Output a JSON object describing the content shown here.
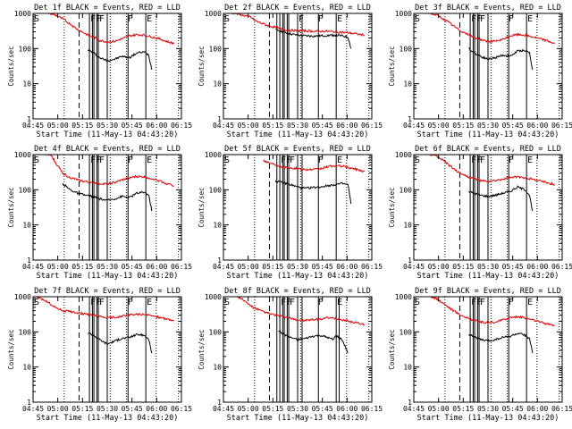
{
  "figure": {
    "background": "#ffffff",
    "axis_color": "#000000"
  },
  "common": {
    "xlabel": "Start Time (11-May-13 04:43:20)",
    "ylabel": "Counts/sec",
    "xtick_labels": [
      "04:45",
      "05:00",
      "05:15",
      "05:30",
      "05:45",
      "06:00",
      "06:15"
    ],
    "ytick_labels": [
      "1",
      "10",
      "100",
      "1000"
    ],
    "colors": {
      "events": "#000000",
      "lld": "#dd0000"
    }
  },
  "chart_data": [
    {
      "type": "line",
      "title": "Det 1f BLACK = Events, RED = LLD",
      "x_units": "minutes after 04:43:20",
      "xlim": [
        0,
        100
      ],
      "ylim": [
        1,
        1000
      ],
      "yscale": "log",
      "dotted_lines": [
        21,
        52,
        63,
        83,
        98
      ],
      "dashed_lines": [
        31
      ],
      "solid_lines": [
        38,
        40,
        41,
        43,
        44,
        50,
        64,
        76
      ],
      "markers": [
        {
          "label": "S",
          "x": 0
        },
        {
          "label": "FF",
          "x": 38
        },
        {
          "label": "F",
          "x": 44
        },
        {
          "label": "F",
          "x": 63
        },
        {
          "label": "E",
          "x": 76
        }
      ],
      "series": [
        {
          "role": "events",
          "x": [
            37,
            40,
            45,
            50,
            55,
            60,
            65,
            70,
            75,
            78,
            80
          ],
          "y": [
            90,
            80,
            55,
            45,
            50,
            60,
            55,
            75,
            80,
            65,
            25
          ]
        },
        {
          "role": "lld",
          "x": [
            0,
            10,
            15,
            20,
            25,
            30,
            35,
            38,
            42,
            45,
            50,
            55,
            60,
            65,
            70,
            75,
            80,
            85,
            90,
            95
          ],
          "y": [
            1100,
            1050,
            900,
            700,
            500,
            350,
            270,
            230,
            200,
            170,
            155,
            160,
            190,
            230,
            250,
            240,
            215,
            190,
            160,
            140
          ]
        }
      ]
    },
    {
      "type": "line",
      "title": "Det 2f BLACK = Events, RED = LLD",
      "x_units": "minutes after 04:43:20",
      "xlim": [
        0,
        100
      ],
      "ylim": [
        1,
        1000
      ],
      "yscale": "log",
      "dotted_lines": [
        21,
        52,
        83,
        98
      ],
      "dashed_lines": [
        31
      ],
      "solid_lines": [
        36,
        38,
        40,
        41,
        43,
        44,
        50,
        53,
        64,
        76
      ],
      "markers": [
        {
          "label": "S",
          "x": 0
        },
        {
          "label": "F",
          "x": 50
        },
        {
          "label": "F",
          "x": 63
        },
        {
          "label": "E",
          "x": 76
        }
      ],
      "series": [
        {
          "role": "events",
          "x": [
            35,
            40,
            45,
            50,
            55,
            60,
            65,
            70,
            75,
            80,
            84,
            86
          ],
          "y": [
            350,
            300,
            260,
            240,
            230,
            225,
            230,
            235,
            240,
            230,
            210,
            100
          ]
        },
        {
          "role": "lld",
          "x": [
            0,
            8,
            12,
            18,
            22,
            30,
            35,
            40,
            45,
            50,
            55,
            60,
            65,
            70,
            75,
            80,
            85,
            90,
            95
          ],
          "y": [
            1100,
            1000,
            900,
            800,
            600,
            450,
            400,
            350,
            330,
            320,
            320,
            310,
            310,
            310,
            300,
            290,
            280,
            260,
            240
          ]
        }
      ]
    },
    {
      "type": "line",
      "title": "Det 3f BLACK = Events, RED = LLD",
      "x_units": "minutes after 04:43:20",
      "xlim": [
        0,
        100
      ],
      "ylim": [
        1,
        1000
      ],
      "yscale": "log",
      "dotted_lines": [
        21,
        52,
        63,
        83,
        98
      ],
      "dashed_lines": [
        31
      ],
      "solid_lines": [
        38,
        40,
        41,
        43,
        44,
        50,
        64,
        76
      ],
      "markers": [
        {
          "label": "S",
          "x": 0
        },
        {
          "label": "FF",
          "x": 38
        },
        {
          "label": "F",
          "x": 44
        },
        {
          "label": "F",
          "x": 63
        },
        {
          "label": "E",
          "x": 76
        }
      ],
      "series": [
        {
          "role": "events",
          "x": [
            37,
            40,
            45,
            50,
            55,
            60,
            65,
            70,
            75,
            78,
            80
          ],
          "y": [
            100,
            80,
            60,
            50,
            55,
            65,
            60,
            85,
            90,
            75,
            25
          ]
        },
        {
          "role": "lld",
          "x": [
            0,
            10,
            15,
            20,
            25,
            30,
            35,
            38,
            42,
            45,
            50,
            55,
            60,
            65,
            70,
            75,
            80,
            85,
            90,
            95
          ],
          "y": [
            1100,
            1050,
            900,
            700,
            500,
            350,
            270,
            230,
            200,
            180,
            160,
            160,
            180,
            230,
            250,
            240,
            215,
            190,
            165,
            140
          ]
        }
      ]
    },
    {
      "type": "line",
      "title": "Det 4f BLACK = Events, RED = LLD",
      "x_units": "minutes after 04:43:20",
      "xlim": [
        0,
        100
      ],
      "ylim": [
        1,
        1000
      ],
      "yscale": "log",
      "dotted_lines": [
        21,
        52,
        63,
        83,
        98
      ],
      "dashed_lines": [
        31
      ],
      "solid_lines": [
        38,
        40,
        41,
        43,
        44,
        50,
        64,
        76
      ],
      "markers": [
        {
          "label": "S",
          "x": 0
        },
        {
          "label": "FF",
          "x": 38
        },
        {
          "label": "F",
          "x": 44
        },
        {
          "label": "F",
          "x": 63
        },
        {
          "label": "E",
          "x": 76
        }
      ],
      "series": [
        {
          "role": "events",
          "x": [
            20,
            25,
            30,
            35,
            40,
            45,
            50,
            55,
            60,
            65,
            70,
            75,
            78,
            80
          ],
          "y": [
            150,
            100,
            80,
            70,
            65,
            55,
            50,
            55,
            65,
            60,
            80,
            85,
            70,
            25
          ]
        },
        {
          "role": "lld",
          "x": [
            0,
            8,
            12,
            15,
            20,
            25,
            30,
            35,
            40,
            45,
            50,
            55,
            60,
            65,
            70,
            75,
            80,
            85,
            90,
            95
          ],
          "y": [
            1100,
            1050,
            1000,
            600,
            300,
            220,
            190,
            170,
            160,
            150,
            145,
            160,
            190,
            220,
            240,
            230,
            210,
            180,
            150,
            130
          ]
        }
      ]
    },
    {
      "type": "line",
      "title": "Det 5f BLACK = Events, RED = LLD",
      "x_units": "minutes after 04:43:20",
      "xlim": [
        0,
        100
      ],
      "ylim": [
        1,
        1000
      ],
      "yscale": "log",
      "dotted_lines": [
        21,
        52,
        83,
        98
      ],
      "dashed_lines": [
        31
      ],
      "solid_lines": [
        36,
        38,
        40,
        41,
        43,
        44,
        50,
        53,
        64,
        76
      ],
      "markers": [
        {
          "label": "S",
          "x": 0
        },
        {
          "label": "FF",
          "x": 38
        },
        {
          "label": "F",
          "x": 44
        },
        {
          "label": "F",
          "x": 63
        },
        {
          "label": "E",
          "x": 76
        }
      ],
      "series": [
        {
          "role": "events",
          "x": [
            35,
            40,
            45,
            50,
            55,
            60,
            65,
            70,
            75,
            80,
            84,
            86
          ],
          "y": [
            180,
            160,
            140,
            120,
            110,
            115,
            120,
            130,
            140,
            150,
            140,
            40
          ]
        },
        {
          "role": "lld",
          "x": [
            27,
            30,
            35,
            40,
            45,
            50,
            55,
            60,
            65,
            70,
            75,
            80,
            85,
            90,
            95
          ],
          "y": [
            700,
            600,
            520,
            450,
            420,
            400,
            380,
            370,
            390,
            450,
            480,
            470,
            420,
            380,
            330
          ]
        }
      ]
    },
    {
      "type": "line",
      "title": "Det 6f BLACK = Events, RED = LLD",
      "x_units": "minutes after 04:43:20",
      "xlim": [
        0,
        100
      ],
      "ylim": [
        1,
        1000
      ],
      "yscale": "log",
      "dotted_lines": [
        21,
        52,
        63,
        83,
        98
      ],
      "dashed_lines": [
        31
      ],
      "solid_lines": [
        38,
        40,
        41,
        43,
        44,
        50,
        64,
        76
      ],
      "markers": [
        {
          "label": "S",
          "x": 0
        },
        {
          "label": "FF",
          "x": 38
        },
        {
          "label": "F",
          "x": 44
        },
        {
          "label": "F",
          "x": 63
        },
        {
          "label": "E",
          "x": 76
        }
      ],
      "series": [
        {
          "role": "events",
          "x": [
            37,
            40,
            45,
            50,
            55,
            60,
            65,
            70,
            75,
            78,
            80
          ],
          "y": [
            90,
            80,
            70,
            65,
            70,
            80,
            90,
            120,
            100,
            70,
            25
          ]
        },
        {
          "role": "lld",
          "x": [
            0,
            10,
            15,
            20,
            25,
            30,
            35,
            38,
            42,
            45,
            50,
            55,
            60,
            65,
            70,
            75,
            80,
            85,
            90,
            95
          ],
          "y": [
            1100,
            1050,
            900,
            700,
            450,
            320,
            250,
            220,
            200,
            180,
            170,
            180,
            200,
            220,
            230,
            220,
            200,
            180,
            160,
            140
          ]
        }
      ]
    },
    {
      "type": "line",
      "title": "Det 7f BLACK = Events, RED = LLD",
      "x_units": "minutes after 04:43:20",
      "xlim": [
        0,
        100
      ],
      "ylim": [
        1,
        1000
      ],
      "yscale": "log",
      "dotted_lines": [
        21,
        52,
        63,
        83,
        98
      ],
      "dashed_lines": [
        31
      ],
      "solid_lines": [
        38,
        40,
        41,
        43,
        44,
        50,
        64,
        76
      ],
      "markers": [
        {
          "label": "S",
          "x": 0
        },
        {
          "label": "FF",
          "x": 38
        },
        {
          "label": "F",
          "x": 44
        },
        {
          "label": "F",
          "x": 63
        },
        {
          "label": "E",
          "x": 76
        }
      ],
      "series": [
        {
          "role": "events",
          "x": [
            37,
            40,
            45,
            50,
            55,
            60,
            65,
            70,
            75,
            78,
            80
          ],
          "y": [
            95,
            85,
            60,
            45,
            55,
            65,
            70,
            85,
            80,
            60,
            25
          ]
        },
        {
          "role": "lld",
          "x": [
            0,
            5,
            10,
            15,
            20,
            25,
            30,
            35,
            40,
            45,
            50,
            55,
            60,
            65,
            70,
            75,
            80,
            85,
            90,
            95
          ],
          "y": [
            1100,
            900,
            700,
            500,
            400,
            380,
            350,
            320,
            300,
            270,
            250,
            260,
            280,
            300,
            320,
            310,
            290,
            260,
            230,
            210
          ]
        }
      ]
    },
    {
      "type": "line",
      "title": "Det 8f BLACK = Events, RED = LLD",
      "x_units": "minutes after 04:43:20",
      "xlim": [
        0,
        100
      ],
      "ylim": [
        1,
        1000
      ],
      "yscale": "log",
      "dotted_lines": [
        21,
        52,
        83,
        98
      ],
      "dashed_lines": [
        31
      ],
      "solid_lines": [
        36,
        38,
        40,
        41,
        43,
        44,
        50,
        53,
        64,
        76,
        78
      ],
      "markers": [
        {
          "label": "S",
          "x": 0
        },
        {
          "label": "FF",
          "x": 38
        },
        {
          "label": "F",
          "x": 44
        },
        {
          "label": "F",
          "x": 63
        },
        {
          "label": "E",
          "x": 76
        }
      ],
      "series": [
        {
          "role": "events",
          "x": [
            37,
            40,
            45,
            50,
            55,
            60,
            65,
            70,
            74,
            76,
            80,
            84
          ],
          "y": [
            110,
            90,
            70,
            60,
            65,
            75,
            80,
            70,
            60,
            80,
            60,
            25
          ]
        },
        {
          "role": "lld",
          "x": [
            0,
            8,
            12,
            15,
            20,
            25,
            30,
            35,
            40,
            45,
            50,
            55,
            60,
            65,
            70,
            75,
            80,
            85,
            90,
            95
          ],
          "y": [
            1100,
            1050,
            900,
            700,
            500,
            400,
            340,
            300,
            270,
            240,
            220,
            210,
            220,
            230,
            250,
            240,
            220,
            200,
            180,
            160
          ]
        }
      ]
    },
    {
      "type": "line",
      "title": "Det 9f BLACK = Events, RED = LLD",
      "x_units": "minutes after 04:43:20",
      "xlim": [
        0,
        100
      ],
      "ylim": [
        1,
        1000
      ],
      "yscale": "log",
      "dotted_lines": [
        21,
        52,
        63,
        83,
        98
      ],
      "dashed_lines": [
        31
      ],
      "solid_lines": [
        38,
        40,
        41,
        43,
        44,
        50,
        64,
        76
      ],
      "markers": [
        {
          "label": "S",
          "x": 0
        },
        {
          "label": "FF",
          "x": 38
        },
        {
          "label": "F",
          "x": 44
        },
        {
          "label": "F",
          "x": 63
        },
        {
          "label": "E",
          "x": 76
        }
      ],
      "series": [
        {
          "role": "events",
          "x": [
            37,
            40,
            45,
            50,
            55,
            60,
            65,
            70,
            75,
            78,
            80
          ],
          "y": [
            85,
            75,
            60,
            55,
            60,
            70,
            75,
            90,
            80,
            65,
            25
          ]
        },
        {
          "role": "lld",
          "x": [
            0,
            10,
            15,
            20,
            25,
            30,
            35,
            38,
            42,
            45,
            50,
            55,
            60,
            65,
            70,
            75,
            80,
            85,
            90,
            95
          ],
          "y": [
            1100,
            1050,
            900,
            650,
            450,
            330,
            260,
            230,
            210,
            190,
            180,
            190,
            220,
            260,
            270,
            250,
            220,
            190,
            170,
            150
          ]
        }
      ]
    }
  ]
}
